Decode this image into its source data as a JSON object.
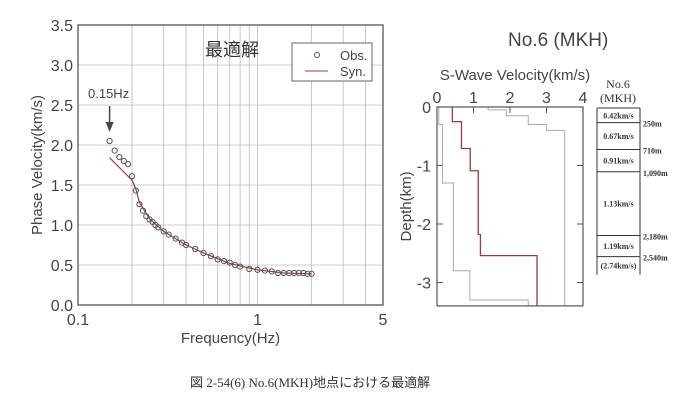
{
  "chart_data": [
    {
      "type": "scatter",
      "title": "最適解",
      "xlabel": "Frequency(Hz)",
      "ylabel": "Phase Velocity(km/s)",
      "xscale": "log",
      "xlim": [
        0.1,
        5
      ],
      "ylim": [
        0,
        3.5
      ],
      "xticks": [
        {
          "v": 0.1,
          "label": "0.1"
        },
        {
          "v": 1,
          "label": "1"
        },
        {
          "v": 5,
          "label": "5"
        }
      ],
      "yticks": [
        {
          "v": 0,
          "label": "0.0"
        },
        {
          "v": 0.5,
          "label": "0.5"
        },
        {
          "v": 1,
          "label": "1.0"
        },
        {
          "v": 1.5,
          "label": "1.5"
        },
        {
          "v": 2,
          "label": "2.0"
        },
        {
          "v": 2.5,
          "label": "2.5"
        },
        {
          "v": 3,
          "label": "3.0"
        },
        {
          "v": 3.5,
          "label": "3.5"
        }
      ],
      "grid": true,
      "legend": {
        "position": "top-right",
        "entries": [
          "Obs.",
          "Syn."
        ]
      },
      "annotation": {
        "text": "0.15Hz",
        "x": 0.15
      },
      "series": [
        {
          "name": "Obs.",
          "style": "circle",
          "color": "#555555",
          "x": [
            0.15,
            0.16,
            0.17,
            0.18,
            0.19,
            0.2,
            0.21,
            0.22,
            0.23,
            0.24,
            0.25,
            0.26,
            0.27,
            0.28,
            0.3,
            0.32,
            0.35,
            0.38,
            0.4,
            0.45,
            0.5,
            0.55,
            0.6,
            0.65,
            0.7,
            0.75,
            0.8,
            0.9,
            1.0,
            1.1,
            1.2,
            1.3,
            1.4,
            1.5,
            1.6,
            1.7,
            1.8,
            1.9,
            2.0
          ],
          "y": [
            2.05,
            1.93,
            1.85,
            1.8,
            1.76,
            1.61,
            1.43,
            1.26,
            1.18,
            1.11,
            1.07,
            1.04,
            1.0,
            0.97,
            0.92,
            0.88,
            0.83,
            0.78,
            0.75,
            0.7,
            0.65,
            0.61,
            0.57,
            0.55,
            0.53,
            0.5,
            0.48,
            0.45,
            0.44,
            0.43,
            0.42,
            0.4,
            0.4,
            0.4,
            0.4,
            0.4,
            0.4,
            0.39,
            0.39
          ]
        },
        {
          "name": "Syn.",
          "style": "line",
          "color": "#a03a3a",
          "x": [
            0.15,
            0.2,
            0.21,
            0.22,
            0.25,
            0.3,
            0.4,
            0.5,
            0.7,
            1.0,
            1.4,
            2.0
          ],
          "y": [
            1.84,
            1.56,
            1.45,
            1.28,
            1.08,
            0.92,
            0.75,
            0.65,
            0.52,
            0.44,
            0.4,
            0.39
          ]
        }
      ]
    },
    {
      "type": "line",
      "title": "S-Wave Velocity(km/s)",
      "xlabel": "S-Wave Velocity(km/s)",
      "ylabel": "Depth(km)",
      "xlim": [
        0,
        4
      ],
      "ylim": [
        -3.4,
        0
      ],
      "xticks": [
        {
          "v": 0,
          "label": "0"
        },
        {
          "v": 1,
          "label": "1"
        },
        {
          "v": 2,
          "label": "2"
        },
        {
          "v": 3,
          "label": "3"
        },
        {
          "v": 4,
          "label": "4"
        }
      ],
      "yticks": [
        {
          "v": 0,
          "label": "0"
        },
        {
          "v": -1,
          "label": "-1"
        },
        {
          "v": -2,
          "label": "-2"
        },
        {
          "v": -3,
          "label": "-3"
        }
      ],
      "series": [
        {
          "name": "best",
          "color": "#a03a3a",
          "velocity": [
            0.42,
            0.67,
            0.91,
            1.13,
            1.19,
            2.74
          ],
          "depth_bottom": [
            0.25,
            0.71,
            1.09,
            2.18,
            2.54,
            3.4
          ]
        },
        {
          "name": "lower-bound",
          "color": "#aaaaaa",
          "velocity": [
            0.05,
            0.15,
            0.45,
            0.9,
            2.5
          ],
          "depth_bottom": [
            0.3,
            1.3,
            2.8,
            3.3,
            3.4
          ]
        },
        {
          "name": "upper-bound",
          "color": "#aaaaaa",
          "velocity": [
            1.4,
            1.9,
            2.5,
            3.0,
            3.5
          ],
          "depth_bottom": [
            0.05,
            0.15,
            0.3,
            0.4,
            3.4
          ]
        }
      ]
    }
  ],
  "site_title": "No.6 (MKH)",
  "column": {
    "title_line1": "No.6",
    "title_line2": "(MKH)",
    "layers": [
      {
        "velocity": "0.42km/s",
        "bottom": "250m",
        "depth": 0.25
      },
      {
        "velocity": "0.67km/s",
        "bottom": "710m",
        "depth": 0.71
      },
      {
        "velocity": "0.91km/s",
        "bottom": "1,090m",
        "depth": 1.09
      },
      {
        "velocity": "1.13km/s",
        "bottom": "2,180m",
        "depth": 2.18
      },
      {
        "velocity": "1.19km/s",
        "bottom": "2,540m",
        "depth": 2.54
      },
      {
        "velocity": "(2.74km/s)",
        "bottom": "",
        "depth": 2.85
      }
    ]
  },
  "caption": "図 2-54(6) No.6(MKH)地点における最適解"
}
